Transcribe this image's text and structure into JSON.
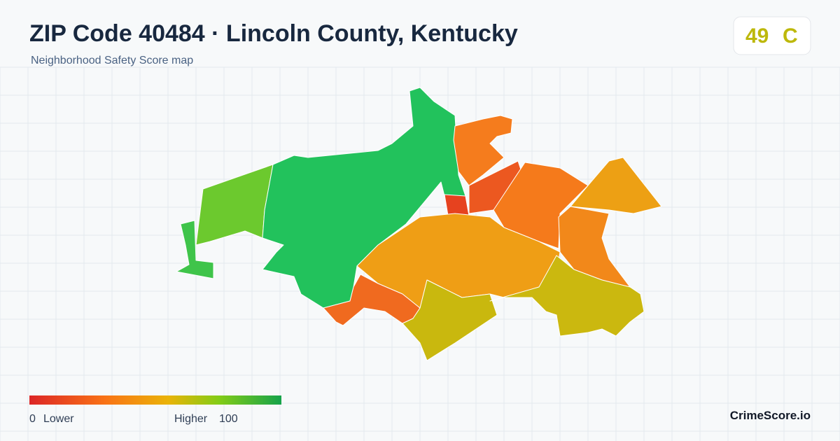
{
  "header": {
    "title": "ZIP Code 40484 · Lincoln County, Kentucky",
    "subtitle": "Neighborhood Safety Score map"
  },
  "badge": {
    "score": "49",
    "grade": "C"
  },
  "legend": {
    "min": "0",
    "min_label": "Lower",
    "max_label": "Higher",
    "max": "100"
  },
  "brand": "CrimeScore.io"
}
